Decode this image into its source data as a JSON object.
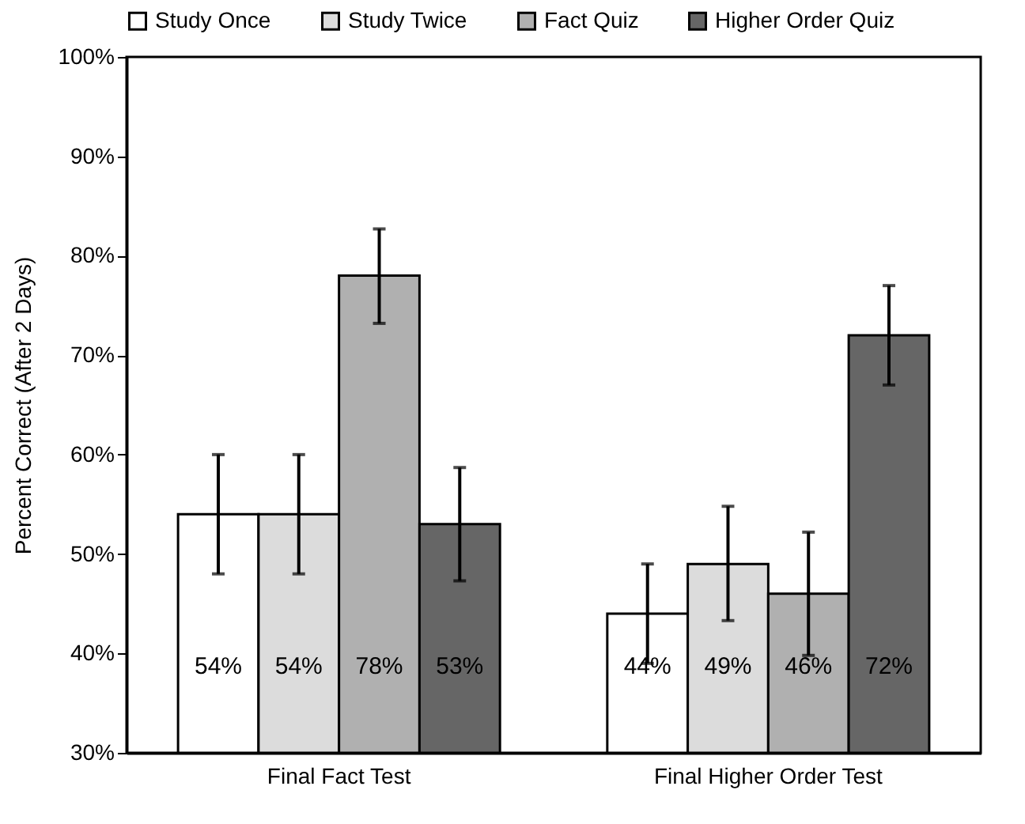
{
  "chart_data": {
    "type": "bar",
    "ylabel": "Percent Correct (After 2 Days)",
    "categories": [
      "Final Fact Test",
      "Final Higher Order Test"
    ],
    "series": [
      {
        "name": "Study Once",
        "color": "#ffffff",
        "values": [
          54,
          44
        ],
        "errors": [
          [
            48,
            60
          ],
          [
            39,
            49
          ]
        ],
        "value_labels": [
          "54%",
          "44%"
        ]
      },
      {
        "name": "Study Twice",
        "color": "#dcdcdc",
        "values": [
          54,
          49
        ],
        "errors": [
          [
            48,
            60
          ],
          [
            43.3,
            54.8
          ]
        ],
        "value_labels": [
          "54%",
          "49%"
        ]
      },
      {
        "name": "Fact Quiz",
        "color": "#b0b0b0",
        "values": [
          78,
          46
        ],
        "errors": [
          [
            73.2,
            82.7
          ],
          [
            39.8,
            52.2
          ]
        ],
        "value_labels": [
          "78%",
          "46%"
        ]
      },
      {
        "name": "Higher Order Quiz",
        "color": "#666666",
        "values": [
          53,
          72
        ],
        "errors": [
          [
            47.3,
            58.7
          ],
          [
            67,
            77
          ]
        ],
        "value_labels": [
          "53%",
          "72%"
        ]
      }
    ],
    "ylim": [
      30,
      100
    ],
    "yticks": [
      {
        "value": 30,
        "label": "30%"
      },
      {
        "value": 40,
        "label": "40%"
      },
      {
        "value": 50,
        "label": "50%"
      },
      {
        "value": 60,
        "label": "60%"
      },
      {
        "value": 70,
        "label": "70%"
      },
      {
        "value": 80,
        "label": "80%"
      },
      {
        "value": 90,
        "label": "90%"
      },
      {
        "value": 100,
        "label": "100%"
      }
    ],
    "grid": false,
    "legend": "top"
  }
}
